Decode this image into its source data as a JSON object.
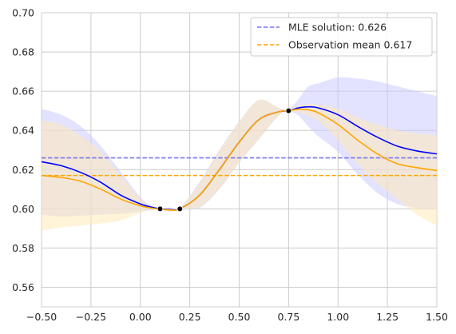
{
  "chart_data": {
    "type": "line",
    "xlim": [
      -0.5,
      1.5
    ],
    "ylim": [
      0.55,
      0.7
    ],
    "x_ticks": [
      "−0.50",
      "−0.25",
      "0.00",
      "0.25",
      "0.50",
      "0.75",
      "1.00",
      "1.25",
      "1.50"
    ],
    "y_ticks": [
      "0.56",
      "0.58",
      "0.60",
      "0.62",
      "0.64",
      "0.66",
      "0.68",
      "0.70"
    ],
    "grid": true,
    "legend_placement": "top-right",
    "observations": {
      "x": [
        0.1,
        0.2,
        0.75
      ],
      "y": [
        0.6,
        0.6,
        0.65
      ],
      "color": "#000000"
    },
    "hlines": [
      {
        "name": "MLE solution: 0.626",
        "y": 0.626,
        "color": "#7777ee",
        "style": "dashed"
      },
      {
        "name": "Observation mean 0.617",
        "y": 0.617,
        "color": "#ffa500",
        "style": "dashed"
      }
    ],
    "series": [
      {
        "color": "#0000ff",
        "band_color": "#ccccff",
        "x": [
          -0.5,
          -0.4,
          -0.3,
          -0.2,
          -0.1,
          0.0,
          0.05,
          0.1,
          0.15,
          0.2,
          0.3,
          0.4,
          0.5,
          0.6,
          0.7,
          0.75,
          0.8,
          0.85,
          0.9,
          1.0,
          1.1,
          1.2,
          1.3,
          1.4,
          1.5
        ],
        "y": [
          0.624,
          0.622,
          0.6185,
          0.6135,
          0.607,
          0.6025,
          0.601,
          0.6,
          0.5996,
          0.6,
          0.607,
          0.62,
          0.634,
          0.6455,
          0.6495,
          0.65,
          0.6515,
          0.652,
          0.6515,
          0.648,
          0.642,
          0.6365,
          0.632,
          0.6295,
          0.628
        ],
        "upper": [
          0.651,
          0.648,
          0.642,
          0.632,
          0.619,
          0.606,
          0.602,
          0.6003,
          0.6007,
          0.6005,
          0.6138,
          0.63,
          0.6445,
          0.6555,
          0.6515,
          0.6505,
          0.656,
          0.6625,
          0.664,
          0.667,
          0.6665,
          0.665,
          0.6625,
          0.66,
          0.6575
        ],
        "lower": [
          0.597,
          0.596,
          0.5965,
          0.597,
          0.5975,
          0.5985,
          0.5992,
          0.5997,
          0.5985,
          0.5995,
          0.6005,
          0.61,
          0.6235,
          0.6355,
          0.6475,
          0.6495,
          0.6475,
          0.642,
          0.637,
          0.629,
          0.6175,
          0.608,
          0.6025,
          0.6005,
          0.5995
        ]
      },
      {
        "color": "#ffa500",
        "band_color": "#ffe9b8",
        "x": [
          -0.5,
          -0.4,
          -0.3,
          -0.2,
          -0.1,
          0.0,
          0.05,
          0.1,
          0.15,
          0.2,
          0.3,
          0.4,
          0.5,
          0.6,
          0.7,
          0.75,
          0.8,
          0.85,
          0.9,
          1.0,
          1.1,
          1.2,
          1.3,
          1.4,
          1.5
        ],
        "y": [
          0.617,
          0.616,
          0.614,
          0.61,
          0.605,
          0.6015,
          0.6005,
          0.5998,
          0.5994,
          0.6,
          0.607,
          0.62,
          0.634,
          0.6455,
          0.6495,
          0.65,
          0.6508,
          0.6505,
          0.649,
          0.643,
          0.635,
          0.628,
          0.623,
          0.621,
          0.6195
        ],
        "upper": [
          0.645,
          0.643,
          0.637,
          0.629,
          0.617,
          0.605,
          0.6015,
          0.6003,
          0.6001,
          0.6003,
          0.613,
          0.6295,
          0.6445,
          0.6555,
          0.6515,
          0.6505,
          0.6525,
          0.6535,
          0.653,
          0.651,
          0.6465,
          0.643,
          0.64,
          0.6385,
          0.6375
        ],
        "lower": [
          0.589,
          0.5905,
          0.5915,
          0.5925,
          0.594,
          0.598,
          0.5995,
          0.5993,
          0.5987,
          0.5997,
          0.601,
          0.6105,
          0.6235,
          0.6355,
          0.6475,
          0.6495,
          0.649,
          0.6475,
          0.645,
          0.635,
          0.623,
          0.613,
          0.605,
          0.597,
          0.5915
        ]
      }
    ]
  }
}
